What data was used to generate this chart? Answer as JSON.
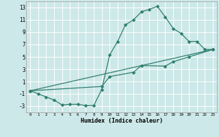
{
  "title": "",
  "xlabel": "Humidex (Indice chaleur)",
  "bg_color": "#cde8e8",
  "grid_color": "#ffffff",
  "line_color": "#2d7d6e",
  "xlim": [
    -0.5,
    23.5
  ],
  "ylim": [
    -4,
    14
  ],
  "xticks": [
    0,
    1,
    2,
    3,
    4,
    5,
    6,
    7,
    8,
    9,
    10,
    11,
    12,
    13,
    14,
    15,
    16,
    17,
    18,
    19,
    20,
    21,
    22,
    23
  ],
  "yticks": [
    -3,
    -1,
    1,
    3,
    5,
    7,
    9,
    11,
    13
  ],
  "curve1_x": [
    0,
    1,
    2,
    3,
    4,
    5,
    6,
    7,
    8,
    9,
    10,
    11,
    12,
    13,
    14,
    15,
    16,
    17,
    18,
    19,
    20,
    21,
    22,
    23
  ],
  "curve1_y": [
    -0.5,
    -1.0,
    -1.5,
    -2.0,
    -2.8,
    -2.7,
    -2.7,
    -2.9,
    -2.9,
    -0.3,
    5.3,
    7.5,
    10.2,
    11.0,
    12.3,
    12.7,
    13.2,
    11.5,
    9.6,
    8.8,
    7.5,
    7.5,
    6.2,
    6.2
  ],
  "curve2_x": [
    0,
    23
  ],
  "curve2_y": [
    -0.5,
    6.2
  ],
  "curve3_x": [
    0,
    9,
    10,
    13,
    14,
    17,
    18,
    20,
    23
  ],
  "curve3_y": [
    -0.5,
    0.2,
    1.8,
    2.5,
    3.6,
    3.5,
    4.2,
    5.0,
    6.2
  ],
  "markersize": 2.5,
  "linewidth": 0.9
}
